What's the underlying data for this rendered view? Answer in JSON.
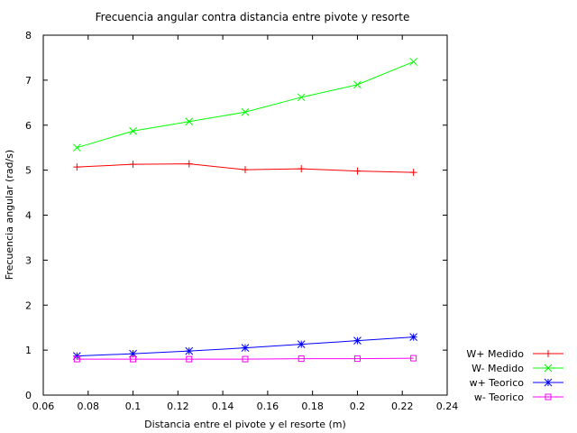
{
  "chart_data": {
    "type": "line",
    "title": "Frecuencia angular contra distancia entre pivote y resorte",
    "xlabel": "Distancia entre el pivote y el resorte (m)",
    "ylabel": "Frecuencia angular (rad/s)",
    "xlim": [
      0.06,
      0.24
    ],
    "ylim": [
      0,
      8
    ],
    "xticks": [
      "0.06",
      "0.08",
      "0.1",
      "0.12",
      "0.14",
      "0.16",
      "0.18",
      "0.2",
      "0.22",
      "0.24"
    ],
    "yticks": [
      "0",
      "1",
      "2",
      "3",
      "4",
      "5",
      "6",
      "7",
      "8"
    ],
    "grid": false,
    "legend_position": "bottom-right",
    "x": [
      0.075,
      0.1,
      0.125,
      0.15,
      0.175,
      0.2,
      0.225
    ],
    "series": [
      {
        "name": "W+ Medido",
        "color": "#ff0000",
        "marker": "plus",
        "values": [
          5.07,
          5.13,
          5.14,
          5.01,
          5.03,
          4.98,
          4.95
        ]
      },
      {
        "name": "W- Medido",
        "color": "#00ff00",
        "marker": "cross",
        "values": [
          5.5,
          5.87,
          6.08,
          6.29,
          6.62,
          6.9,
          7.41
        ]
      },
      {
        "name": "w+ Teorico",
        "color": "#0000ff",
        "marker": "star",
        "values": [
          0.87,
          0.92,
          0.98,
          1.05,
          1.13,
          1.21,
          1.29
        ]
      },
      {
        "name": "w- Teorico",
        "color": "#ff00ff",
        "marker": "square",
        "values": [
          0.8,
          0.8,
          0.8,
          0.8,
          0.81,
          0.81,
          0.82
        ]
      }
    ]
  }
}
